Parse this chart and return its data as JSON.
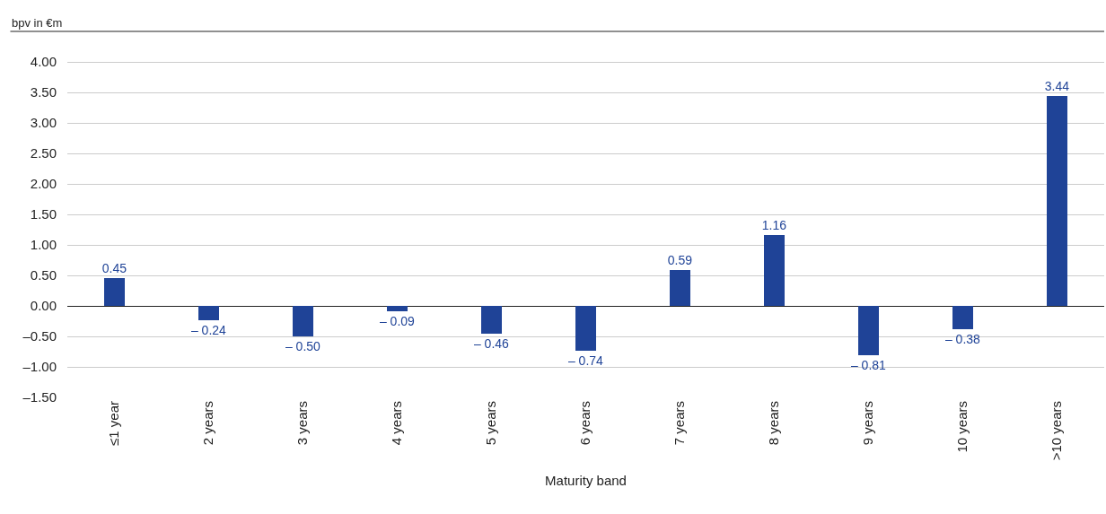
{
  "chart_data": {
    "type": "bar",
    "ylabel": "bpv in €m",
    "xlabel": "Maturity band",
    "categories": [
      "≤1 year",
      "2 years",
      "3 years",
      "4 years",
      "5 years",
      "6 years",
      "7 years",
      "8 years",
      "9 years",
      "10 years",
      ">10 years"
    ],
    "values": [
      0.45,
      -0.24,
      -0.5,
      -0.09,
      -0.46,
      -0.74,
      0.59,
      1.16,
      -0.81,
      -0.38,
      3.44
    ],
    "value_labels": [
      "0.45",
      "– 0.24",
      "– 0.50",
      "– 0.09",
      "– 0.46",
      "– 0.74",
      "0.59",
      "1.16",
      "– 0.81",
      "– 0.38",
      "3.44"
    ],
    "color": "#1f4397",
    "ylim": [
      -1.5,
      4.5
    ],
    "yticks": [
      {
        "value": -1.5,
        "label": "–1.50"
      },
      {
        "value": -1,
        "label": "–1.00"
      },
      {
        "value": -0.5,
        "label": "–0.50"
      },
      {
        "value": 0,
        "label": "0.00"
      },
      {
        "value": 0.5,
        "label": "0.50"
      },
      {
        "value": 1,
        "label": "1.00"
      },
      {
        "value": 1.5,
        "label": "1.50"
      },
      {
        "value": 2,
        "label": "2.00"
      },
      {
        "value": 2.5,
        "label": "2.50"
      },
      {
        "value": 3,
        "label": "3.00"
      },
      {
        "value": 3.5,
        "label": "3.50"
      },
      {
        "value": 4,
        "label": "4.00"
      }
    ],
    "grid": "y",
    "legend": false
  }
}
